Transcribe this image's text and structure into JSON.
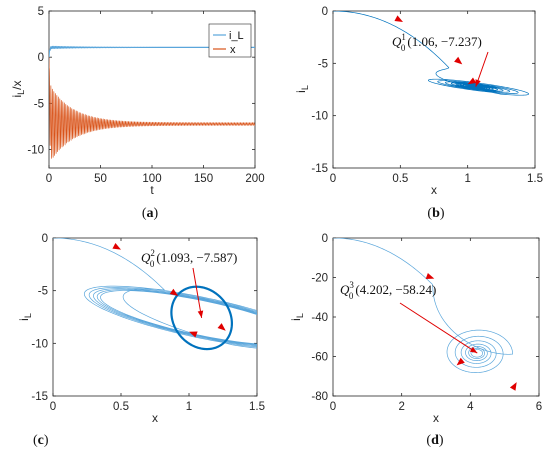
{
  "colors": {
    "blue": "#0072BD",
    "orange": "#D95319",
    "lightblue": "#5AA6DB",
    "arrow": "#E00000"
  },
  "chart_data": [
    {
      "panel": "a",
      "type": "line",
      "caption": [
        "(",
        "a",
        ")"
      ],
      "xlabel": "t",
      "ylabel": "i_L/x",
      "xlim": [
        0,
        200
      ],
      "ylim": [
        -12,
        5
      ],
      "xticks": [
        "0",
        "50",
        "100",
        "150",
        "200"
      ],
      "yticks": [
        "5",
        "0",
        "-5",
        "-10"
      ],
      "legend_position": "top-right",
      "series": [
        {
          "name": "i_L",
          "steady_value": 1.06
        },
        {
          "name": "x",
          "start": 0,
          "steady_value": -7.237,
          "oscillation_envelope": [
            -11.5,
            -4.0
          ]
        }
      ]
    },
    {
      "panel": "b",
      "type": "line",
      "subtype": "phase-portrait",
      "caption": [
        "(",
        "b",
        ")"
      ],
      "xlabel": "x",
      "ylabel": "i_L",
      "xlim": [
        0,
        1.5
      ],
      "ylim": [
        -15,
        0
      ],
      "xticks": [
        "0",
        "0.5",
        "1",
        "1.5"
      ],
      "yticks": [
        "0",
        "-5",
        "-10",
        "-15"
      ],
      "equilibrium": {
        "x": 1.06,
        "y": -7.237
      },
      "annotation": {
        "sym": "Q",
        "sup": "1",
        "sub": "0",
        "coords": "(1.06, −7.237)"
      }
    },
    {
      "panel": "c",
      "type": "line",
      "subtype": "phase-portrait",
      "caption": [
        "(",
        "c",
        ")"
      ],
      "xlabel": "x",
      "ylabel": "i_L",
      "xlim": [
        0,
        1.5
      ],
      "ylim": [
        -15,
        0
      ],
      "xticks": [
        "0",
        "0.5",
        "1",
        "1.5"
      ],
      "yticks": [
        "0",
        "-5",
        "-10",
        "-15"
      ],
      "equilibrium": {
        "x": 1.093,
        "y": -7.587
      },
      "annotation": {
        "sym": "Q",
        "sup": "2",
        "sub": "0",
        "coords": "(1.093, −7.587)"
      }
    },
    {
      "panel": "d",
      "type": "line",
      "subtype": "phase-portrait",
      "caption": [
        "(",
        "d",
        ")"
      ],
      "xlabel": "x",
      "ylabel": "i_L",
      "xlim": [
        0,
        6
      ],
      "ylim": [
        -80,
        0
      ],
      "xticks": [
        "0",
        "2",
        "4",
        "6"
      ],
      "yticks": [
        "0",
        "-20",
        "-40",
        "-60",
        "-80"
      ],
      "equilibrium": {
        "x": 4.202,
        "y": -58.24
      },
      "annotation": {
        "sym": "Q",
        "sup": "3",
        "sub": "0",
        "coords": "(4.202, −58.24)"
      }
    }
  ]
}
